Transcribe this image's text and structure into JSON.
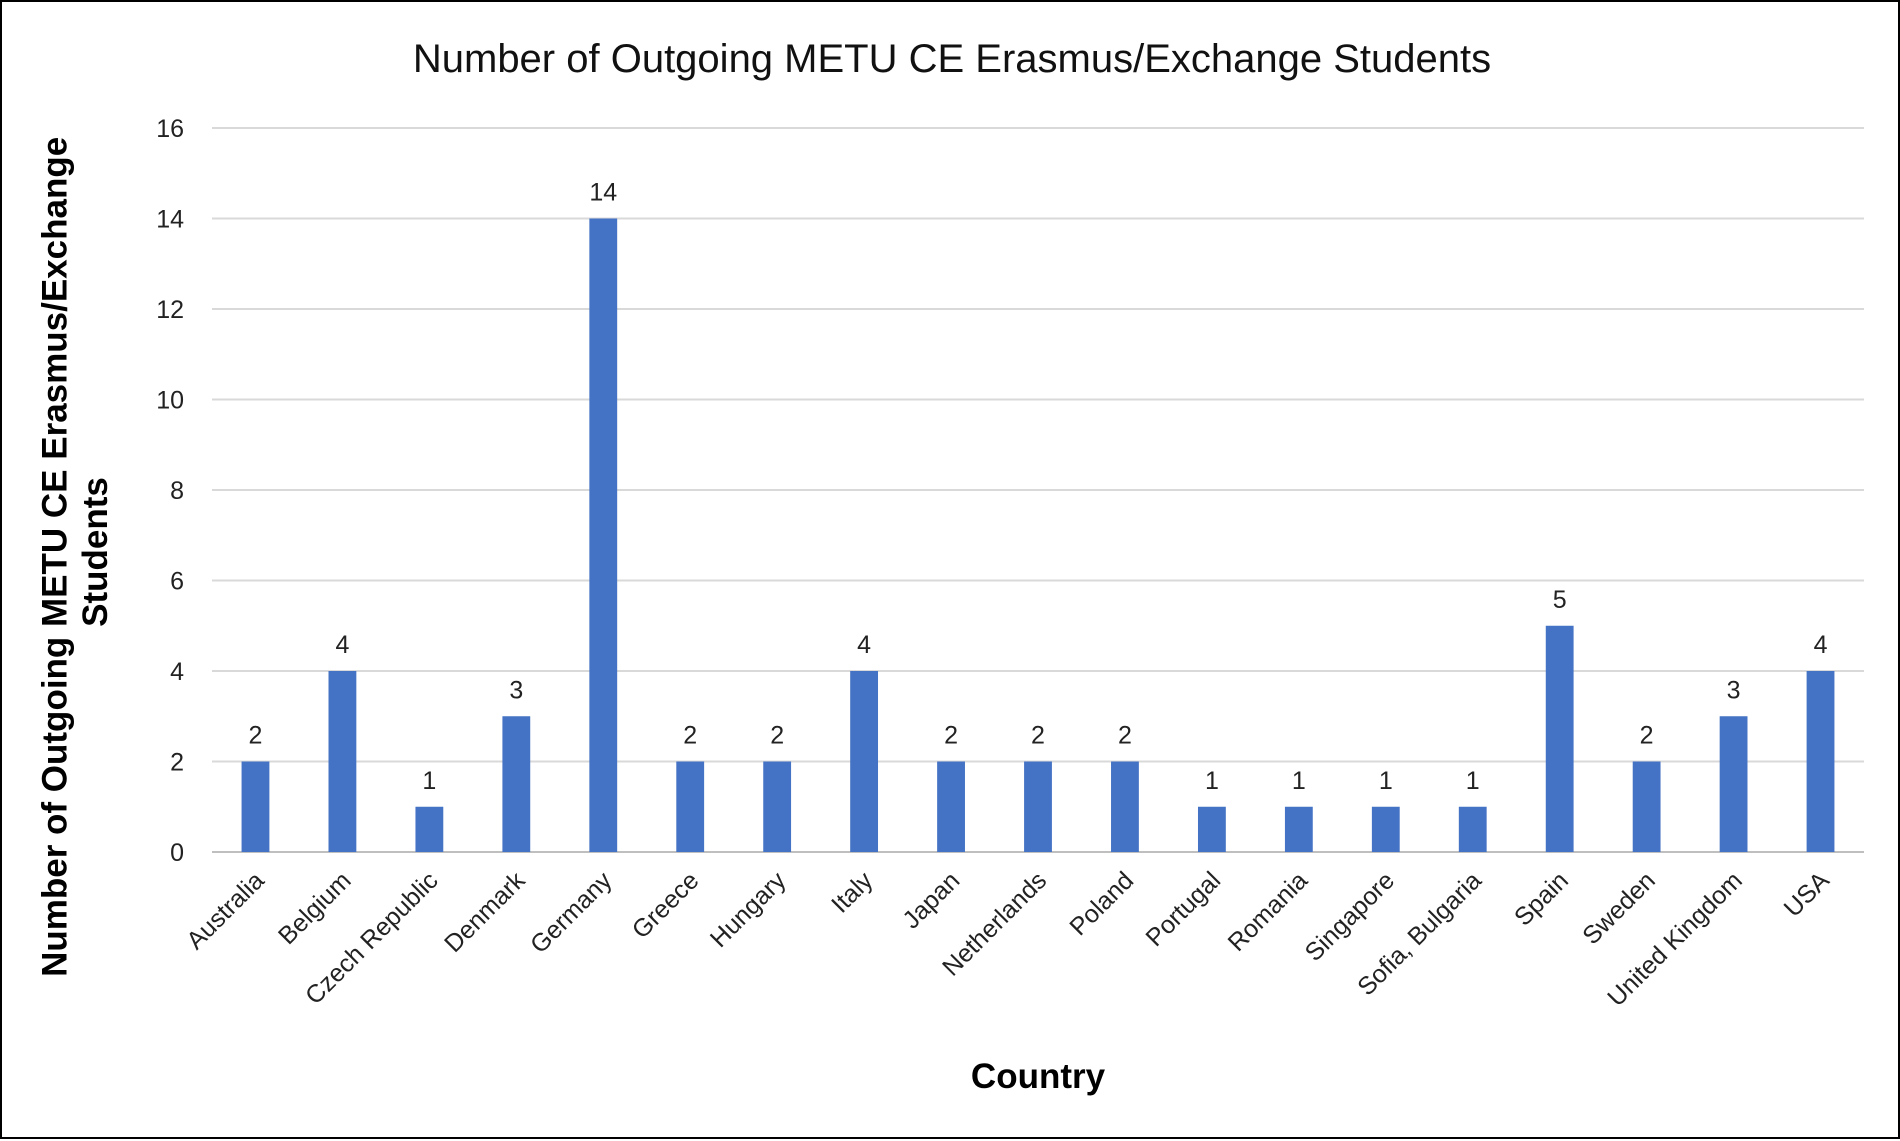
{
  "chart_data": {
    "type": "bar",
    "title": "Number of Outgoing METU CE Erasmus/Exchange Students",
    "xlabel": "Country",
    "ylabel": "Number of Outgoing METU CE Erasmus/Exchange Students",
    "categories": [
      "Australia",
      "Belgium",
      "Czech Republic",
      "Denmark",
      "Germany",
      "Greece",
      "Hungary",
      "Italy",
      "Japan",
      "Netherlands",
      "Poland",
      "Portugal",
      "Romania",
      "Singapore",
      "Sofia, Bulgaria",
      "Spain",
      "Sweden",
      "United Kingdom",
      "USA"
    ],
    "values": [
      2,
      4,
      1,
      3,
      14,
      2,
      2,
      4,
      2,
      2,
      2,
      1,
      1,
      1,
      1,
      5,
      2,
      3,
      4
    ],
    "ylim": [
      0,
      16
    ],
    "yticks": [
      0,
      2,
      4,
      6,
      8,
      10,
      12,
      14,
      16
    ],
    "grid": true,
    "legend": "none",
    "data_labels": true,
    "colors": {
      "bar": "#4472C4",
      "grid": "#D9D9D9",
      "axis": "#BFBFBF"
    }
  }
}
